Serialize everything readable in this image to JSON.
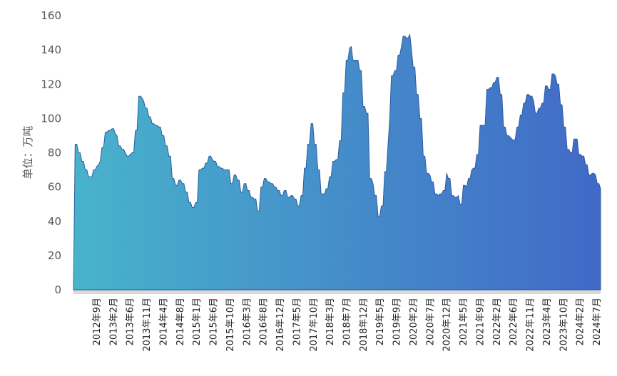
{
  "chart_data": {
    "type": "area",
    "title": "",
    "xlabel": "",
    "ylabel": "单位：万吨",
    "ylim": [
      0,
      160
    ],
    "yticks": [
      0,
      20,
      40,
      60,
      80,
      100,
      120,
      140,
      160
    ],
    "grid": false,
    "legend": "none",
    "colors": {
      "left": "#48b3cb",
      "right": "#4169c8",
      "stroke": "#2b5d9e",
      "baseline": "#d9d9d9"
    },
    "x_tick_labels": [
      "2012年9月",
      "2013年2月",
      "2013年6月",
      "2013年11月",
      "2014年4月",
      "2014年8月",
      "2015年1月",
      "2015年6月",
      "2015年10月",
      "2016年3月",
      "2016年8月",
      "2016年12月",
      "2017年5月",
      "2017年10月",
      "2018年3月",
      "2018年7月",
      "2018年12月",
      "2019年5月",
      "2019年9月",
      "2020年2月",
      "2020年7月",
      "2020年12月",
      "2021年5月",
      "2021年9月",
      "2022年2月",
      "2022年6月",
      "2022年11月",
      "2023年4月",
      "2023年10月",
      "2024年2月",
      "2024年7月"
    ],
    "series": [
      {
        "values": [
          0,
          85,
          85,
          80,
          80,
          75,
          75,
          70,
          70,
          66,
          66,
          66,
          70,
          70,
          72,
          73,
          75,
          83,
          83,
          92,
          92,
          93,
          93,
          94,
          94,
          91,
          90,
          84,
          84,
          82,
          82,
          80,
          78,
          78,
          79,
          80,
          80,
          93,
          93,
          113,
          113,
          112,
          110,
          106,
          106,
          101,
          101,
          97,
          97,
          96,
          96,
          95,
          95,
          90,
          90,
          84,
          84,
          78,
          78,
          65,
          65,
          61,
          61,
          64,
          64,
          62,
          62,
          57,
          57,
          51,
          51,
          48,
          48,
          51,
          51,
          70,
          70,
          71,
          71,
          74,
          74,
          78,
          78,
          76,
          75,
          75,
          72,
          72,
          71,
          71,
          70,
          70,
          70,
          70,
          62,
          62,
          67,
          67,
          64,
          64,
          57,
          57,
          62,
          62,
          58,
          58,
          54,
          54,
          53,
          53,
          46,
          46,
          60,
          60,
          65,
          65,
          63,
          63,
          62,
          62,
          60,
          60,
          58,
          58,
          55,
          55,
          58,
          58,
          54,
          54,
          55,
          55,
          53,
          53,
          49,
          49,
          55,
          55,
          71,
          71,
          85,
          85,
          97,
          97,
          85,
          85,
          70,
          70,
          56,
          56,
          56,
          59,
          59,
          66,
          66,
          75,
          75,
          76,
          76,
          87,
          87,
          115,
          115,
          134,
          134,
          141,
          142,
          134,
          134,
          134,
          134,
          128,
          128,
          107,
          107,
          103,
          103,
          65,
          65,
          62,
          55,
          55,
          43,
          43,
          49,
          49,
          69,
          69,
          85,
          100,
          125,
          125,
          128,
          128,
          137,
          137,
          142,
          148,
          148,
          147,
          147,
          149,
          140,
          130,
          130,
          114,
          114,
          100,
          100,
          78,
          78,
          68,
          68,
          67,
          63,
          63,
          56,
          56,
          55,
          56,
          56,
          58,
          58,
          68,
          65,
          65,
          55,
          55,
          54,
          54,
          55,
          50,
          50,
          61,
          61,
          60,
          65,
          65,
          70,
          71,
          71,
          79,
          79,
          96,
          96,
          96,
          96,
          117,
          117,
          118,
          118,
          121,
          121,
          124,
          124,
          114,
          114,
          95,
          95,
          90,
          90,
          89,
          88,
          87,
          88,
          95,
          95,
          102,
          102,
          109,
          109,
          114,
          114,
          113,
          113,
          110,
          103,
          103,
          106,
          106,
          109,
          109,
          119,
          119,
          117,
          117,
          126,
          126,
          125,
          120,
          120,
          108,
          108,
          95,
          95,
          82,
          82,
          80,
          80,
          88,
          88,
          88,
          79,
          79,
          78,
          78,
          73,
          73,
          67,
          67,
          68,
          68,
          67,
          62,
          62,
          59
        ]
      }
    ]
  }
}
